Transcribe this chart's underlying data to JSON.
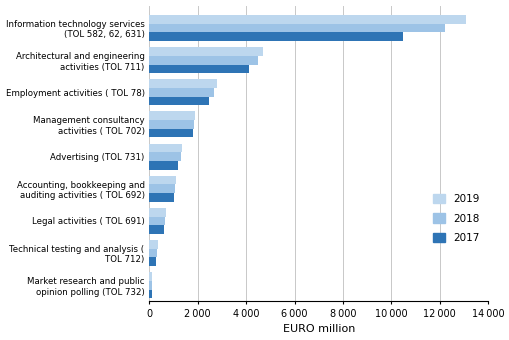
{
  "categories": [
    "Market research and public\nopinion polling (TOL 732)",
    "Technical testing and analysis (\nTOL 712)",
    "Legal activities ( TOL 691)",
    "Accounting, bookkeeping and\nauditing activities ( TOL 692)",
    "Advertising (TOL 731)",
    "Management consultancy\nactivities ( TOL 702)",
    "Employment activities ( TOL 78)",
    "Architectural and engineering\nactivities (TOL 711)",
    "Information technology services\n(TOL 582, 62, 631)"
  ],
  "values_2019": [
    100,
    350,
    680,
    1100,
    1350,
    1900,
    2800,
    4700,
    13100
  ],
  "values_2018": [
    100,
    320,
    640,
    1050,
    1300,
    1850,
    2650,
    4500,
    12200
  ],
  "values_2017": [
    100,
    280,
    600,
    1000,
    1200,
    1800,
    2450,
    4100,
    10500
  ],
  "color_2019": "#bdd7ee",
  "color_2018": "#9dc3e6",
  "color_2017": "#2e74b5",
  "xlabel": "EURO million",
  "xlim": [
    0,
    14000
  ],
  "xticks": [
    0,
    2000,
    4000,
    6000,
    8000,
    10000,
    12000,
    14000
  ],
  "background_color": "#ffffff",
  "grid_color": "#c8c8c8"
}
